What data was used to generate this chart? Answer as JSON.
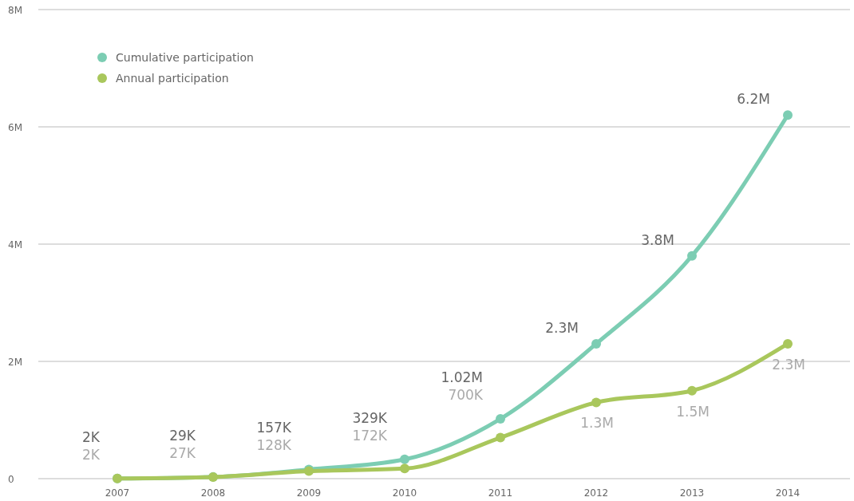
{
  "chart_data": {
    "type": "line",
    "categories": [
      "2007",
      "2008",
      "2009",
      "2010",
      "2011",
      "2012",
      "2013",
      "2014"
    ],
    "series": [
      {
        "name": "Cumulative participation",
        "color": "#7ccdb3",
        "values": [
          2000,
          29000,
          157000,
          329000,
          1020000,
          2300000,
          3800000,
          6200000
        ],
        "value_labels": [
          "2K",
          "29K",
          "157K",
          "329K",
          "1.02M",
          "2.3M",
          "3.8M",
          "6.2M"
        ]
      },
      {
        "name": "Annual participation",
        "color": "#a9c75c",
        "values": [
          2000,
          27000,
          128000,
          172000,
          700000,
          1300000,
          1500000,
          2300000
        ],
        "value_labels": [
          "2K",
          "27K",
          "128K",
          "172K",
          "700K",
          "1.3M",
          "1.5M",
          "2.3M"
        ]
      }
    ],
    "ylim": [
      0,
      8000000
    ],
    "yticks": [
      {
        "value": 0,
        "label": "0"
      },
      {
        "value": 2000000,
        "label": "2M"
      },
      {
        "value": 4000000,
        "label": "4M"
      },
      {
        "value": 6000000,
        "label": "6M"
      },
      {
        "value": 8000000,
        "label": "8M"
      }
    ],
    "grid": "y",
    "legend": "top left",
    "marker": "circle",
    "line_style": "solid"
  }
}
